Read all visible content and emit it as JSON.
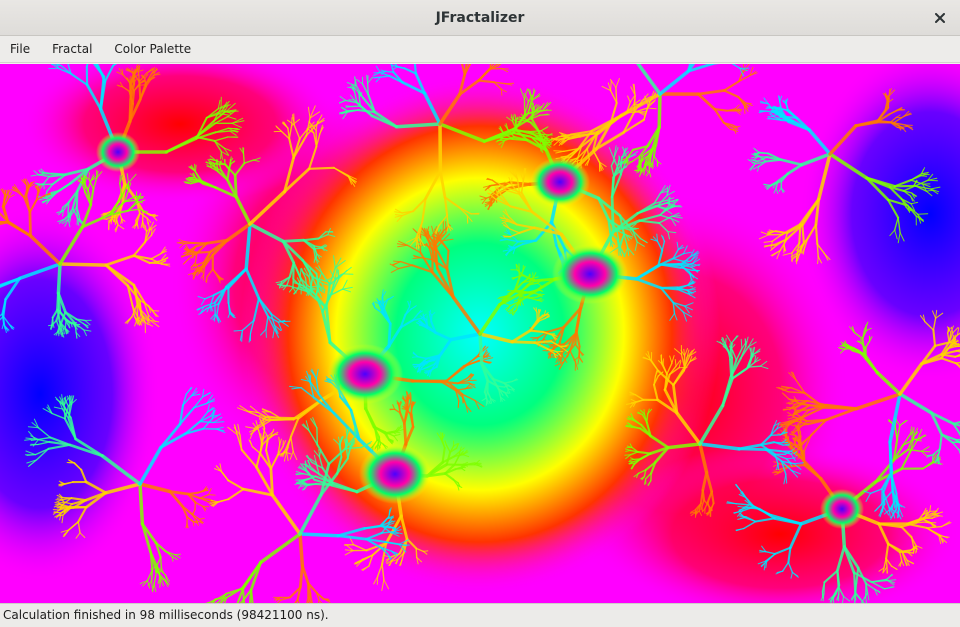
{
  "window": {
    "title": "JFractalizer"
  },
  "menu": {
    "items": [
      "File",
      "Fractal",
      "Color Palette"
    ]
  },
  "fractal_view": {
    "palette_colors": [
      "#0000ff",
      "#ff00ff",
      "#ff0000",
      "#ffff00",
      "#00ff00",
      "#00ffff"
    ]
  },
  "status": {
    "text": "Calculation finished in 98 milliseconds (98421100 ns)."
  },
  "icons": {
    "close": "close-icon"
  }
}
